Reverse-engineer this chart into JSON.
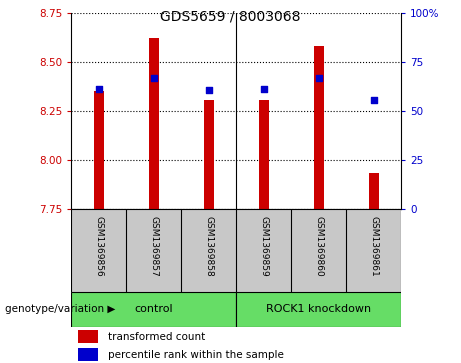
{
  "title": "GDS5659 / 8003068",
  "samples": [
    "GSM1369856",
    "GSM1369857",
    "GSM1369858",
    "GSM1369859",
    "GSM1369860",
    "GSM1369861"
  ],
  "red_bar_values": [
    8.35,
    8.62,
    8.305,
    8.305,
    8.58,
    7.93
  ],
  "blue_dot_values": [
    8.36,
    8.415,
    8.355,
    8.36,
    8.415,
    8.305
  ],
  "ylim": [
    7.75,
    8.75
  ],
  "y_ticks_left": [
    7.75,
    8.0,
    8.25,
    8.5,
    8.75
  ],
  "y_ticks_right_pct": [
    0,
    25,
    50,
    75,
    100
  ],
  "bar_width": 0.18,
  "bar_color": "#cc0000",
  "dot_color": "#0000cc",
  "dot_size": 18,
  "control_label": "control",
  "knockdown_label": "ROCK1 knockdown",
  "group_label": "genotype/variation",
  "legend_bar_label": "transformed count",
  "legend_dot_label": "percentile rank within the sample",
  "bg_color": "#c8c8c8",
  "group_bg": "#66dd66",
  "title_fontsize": 10,
  "tick_fontsize": 7.5,
  "sample_fontsize": 6.5,
  "group_fontsize": 8,
  "legend_fontsize": 7.5
}
